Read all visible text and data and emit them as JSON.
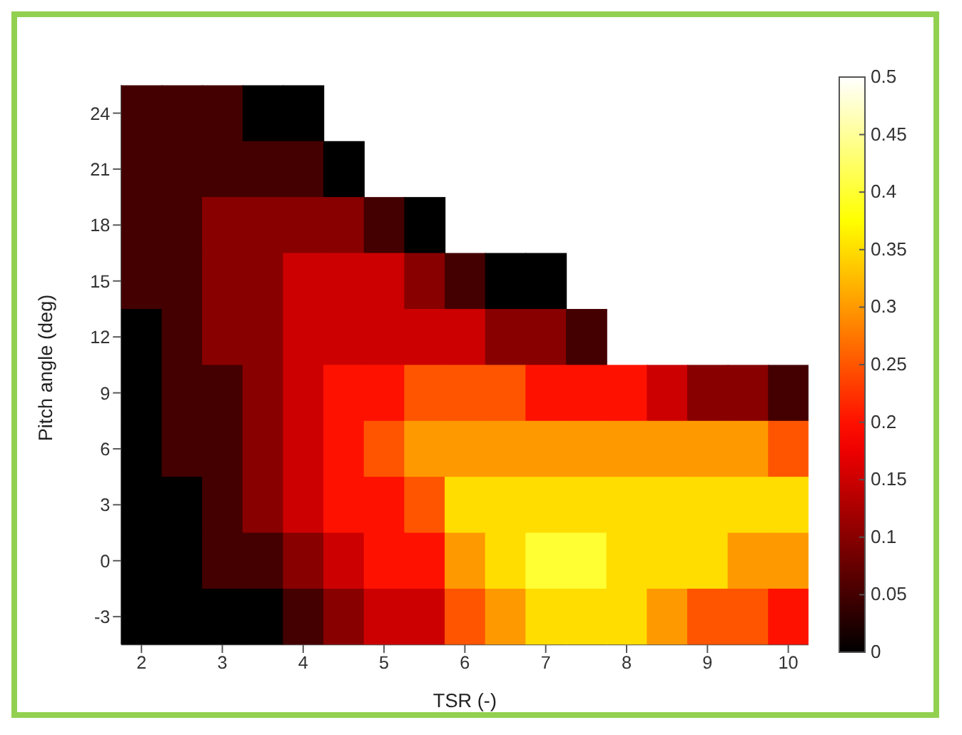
{
  "chart_data": {
    "type": "heatmap",
    "xlabel": "TSR (-)",
    "ylabel": "Pitch angle (deg)",
    "categories": [
      "2",
      null,
      "3",
      null,
      "4",
      null,
      "5",
      null,
      "6",
      null,
      "7",
      null,
      "8",
      null,
      "9",
      null,
      "10"
    ],
    "y_categories": [
      "24",
      "21",
      "18",
      "15",
      "12",
      "9",
      "6",
      "3",
      "0",
      "-3"
    ],
    "cells": [
      [
        0.05,
        0.05,
        0.05,
        0,
        0,
        null,
        null,
        null,
        null,
        null,
        null,
        null,
        null,
        null,
        null,
        null,
        null
      ],
      [
        0.05,
        0.05,
        0.05,
        0.05,
        0.05,
        0,
        null,
        null,
        null,
        null,
        null,
        null,
        null,
        null,
        null,
        null,
        null
      ],
      [
        0.05,
        0.05,
        0.1,
        0.1,
        0.1,
        0.1,
        0.05,
        0,
        null,
        null,
        null,
        null,
        null,
        null,
        null,
        null,
        null
      ],
      [
        0.05,
        0.05,
        0.1,
        0.1,
        0.15,
        0.15,
        0.15,
        0.1,
        0.05,
        0,
        0,
        null,
        null,
        null,
        null,
        null,
        null
      ],
      [
        0,
        0.05,
        0.1,
        0.1,
        0.15,
        0.15,
        0.15,
        0.15,
        0.15,
        0.1,
        0.1,
        0.05,
        null,
        null,
        null,
        null,
        null
      ],
      [
        0,
        0.05,
        0.05,
        0.1,
        0.15,
        0.2,
        0.2,
        0.25,
        0.25,
        0.25,
        0.2,
        0.2,
        0.2,
        0.15,
        0.1,
        0.1,
        0.05
      ],
      [
        0,
        0.05,
        0.05,
        0.1,
        0.15,
        0.2,
        0.25,
        0.3,
        0.3,
        0.3,
        0.3,
        0.3,
        0.3,
        0.3,
        0.3,
        0.3,
        0.25
      ],
      [
        0,
        0,
        0.05,
        0.1,
        0.15,
        0.2,
        0.2,
        0.25,
        0.35,
        0.35,
        0.35,
        0.35,
        0.35,
        0.35,
        0.35,
        0.35,
        0.35
      ],
      [
        0,
        0,
        0.05,
        0.05,
        0.1,
        0.15,
        0.2,
        0.2,
        0.3,
        0.35,
        0.4,
        0.4,
        0.35,
        0.35,
        0.35,
        0.3,
        0.3
      ],
      [
        0,
        0,
        0,
        0,
        0.05,
        0.1,
        0.15,
        0.15,
        0.25,
        0.3,
        0.35,
        0.35,
        0.35,
        0.3,
        0.25,
        0.25,
        0.2
      ]
    ],
    "clim": [
      0,
      0.5
    ],
    "cticks": [
      0,
      0.05,
      0.1,
      0.15,
      0.2,
      0.25,
      0.3,
      0.35,
      0.4,
      0.45,
      0.5
    ]
  }
}
